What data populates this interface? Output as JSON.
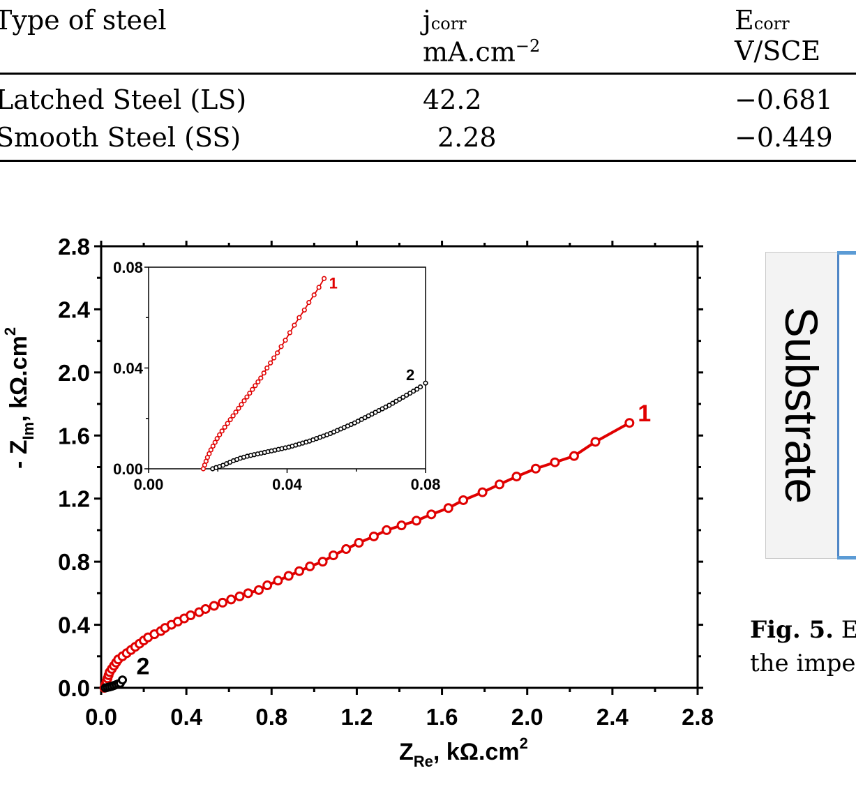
{
  "table": {
    "headers": {
      "type": "Type of steel",
      "jcorr_main": "j",
      "jcorr_sub": "corr",
      "jcorr_unit": "mA.cm",
      "jcorr_exp": "−2",
      "ecorr_main": "E",
      "ecorr_sub": "corr",
      "ecorr_unit": "V/SCE"
    },
    "rows": [
      {
        "type": "Latched Steel (LS)",
        "jcorr": "42.2",
        "ecorr": "−0.681"
      },
      {
        "type": "Smooth Steel (SS)",
        "jcorr": "2.28",
        "ecorr": "−0.449"
      }
    ]
  },
  "chart_data": [
    {
      "type": "scatter",
      "role": "main",
      "xlabel": "Z",
      "xlabel_sub": "Re",
      "xlabel_unit": ", kΩ.cm",
      "xlabel_sup": "2",
      "ylabel": "- Z",
      "ylabel_sub": "Im",
      "ylabel_unit": ", kΩ.cm",
      "ylabel_sup": "2",
      "xlim": [
        0,
        2.8
      ],
      "ylim": [
        0,
        2.8
      ],
      "xticks": [
        "0.0",
        "0.4",
        "0.8",
        "1.2",
        "1.6",
        "2.0",
        "2.4",
        "2.8"
      ],
      "yticks": [
        "0.0",
        "0.4",
        "0.8",
        "1.2",
        "1.6",
        "2.0",
        "2.4",
        "2.8"
      ],
      "series": [
        {
          "name": "1",
          "color": "#e00000",
          "points": [
            [
              0.015,
              0.0
            ],
            [
              0.02,
              0.02
            ],
            [
              0.025,
              0.04
            ],
            [
              0.03,
              0.06
            ],
            [
              0.035,
              0.08
            ],
            [
              0.04,
              0.1
            ],
            [
              0.05,
              0.12
            ],
            [
              0.06,
              0.14
            ],
            [
              0.07,
              0.16
            ],
            [
              0.08,
              0.18
            ],
            [
              0.1,
              0.2
            ],
            [
              0.12,
              0.22
            ],
            [
              0.14,
              0.24
            ],
            [
              0.16,
              0.26
            ],
            [
              0.18,
              0.28
            ],
            [
              0.2,
              0.3
            ],
            [
              0.22,
              0.32
            ],
            [
              0.25,
              0.34
            ],
            [
              0.28,
              0.36
            ],
            [
              0.3,
              0.38
            ],
            [
              0.33,
              0.4
            ],
            [
              0.36,
              0.42
            ],
            [
              0.39,
              0.44
            ],
            [
              0.42,
              0.46
            ],
            [
              0.46,
              0.48
            ],
            [
              0.49,
              0.5
            ],
            [
              0.53,
              0.52
            ],
            [
              0.57,
              0.54
            ],
            [
              0.61,
              0.56
            ],
            [
              0.65,
              0.58
            ],
            [
              0.69,
              0.6
            ],
            [
              0.74,
              0.62
            ],
            [
              0.78,
              0.65
            ],
            [
              0.83,
              0.68
            ],
            [
              0.88,
              0.71
            ],
            [
              0.93,
              0.74
            ],
            [
              0.98,
              0.77
            ],
            [
              1.04,
              0.8
            ],
            [
              1.09,
              0.84
            ],
            [
              1.15,
              0.88
            ],
            [
              1.21,
              0.92
            ],
            [
              1.28,
              0.96
            ],
            [
              1.34,
              1.0
            ],
            [
              1.41,
              1.03
            ],
            [
              1.48,
              1.06
            ],
            [
              1.55,
              1.1
            ],
            [
              1.63,
              1.14
            ],
            [
              1.7,
              1.19
            ],
            [
              1.79,
              1.24
            ],
            [
              1.87,
              1.29
            ],
            [
              1.95,
              1.34
            ],
            [
              2.04,
              1.39
            ],
            [
              2.13,
              1.43
            ],
            [
              2.22,
              1.47
            ],
            [
              2.32,
              1.56
            ],
            [
              2.48,
              1.68
            ]
          ],
          "end_label": "1"
        },
        {
          "name": "2",
          "color": "#000000",
          "points": [
            [
              0.02,
              0.0
            ],
            [
              0.03,
              0.003
            ],
            [
              0.04,
              0.006
            ],
            [
              0.05,
              0.01
            ],
            [
              0.06,
              0.015
            ],
            [
              0.07,
              0.02
            ],
            [
              0.08,
              0.025
            ],
            [
              0.09,
              0.03
            ],
            [
              0.1,
              0.05
            ]
          ],
          "end_label": "2"
        }
      ]
    },
    {
      "type": "scatter",
      "role": "inset",
      "xlim": [
        0,
        0.08
      ],
      "ylim": [
        0,
        0.08
      ],
      "xticks": [
        "0.00",
        "0.04",
        "0.08"
      ],
      "yticks": [
        "0.00",
        "0.04",
        "0.08"
      ],
      "series": [
        {
          "name": "1",
          "color": "#e00000",
          "points": [
            [
              0.0158,
              0.0
            ],
            [
              0.0162,
              0.0015
            ],
            [
              0.0166,
              0.003
            ],
            [
              0.017,
              0.0045
            ],
            [
              0.0175,
              0.006
            ],
            [
              0.018,
              0.0075
            ],
            [
              0.0186,
              0.009
            ],
            [
              0.0192,
              0.0105
            ],
            [
              0.0198,
              0.012
            ],
            [
              0.0205,
              0.0135
            ],
            [
              0.0212,
              0.015
            ],
            [
              0.022,
              0.0165
            ],
            [
              0.0228,
              0.018
            ],
            [
              0.0236,
              0.0195
            ],
            [
              0.0244,
              0.021
            ],
            [
              0.0252,
              0.0225
            ],
            [
              0.026,
              0.024
            ],
            [
              0.0268,
              0.0255
            ],
            [
              0.0276,
              0.027
            ],
            [
              0.0284,
              0.0285
            ],
            [
              0.0292,
              0.03
            ],
            [
              0.03,
              0.0315
            ],
            [
              0.0308,
              0.033
            ],
            [
              0.0316,
              0.0345
            ],
            [
              0.0324,
              0.036
            ],
            [
              0.0333,
              0.038
            ],
            [
              0.0342,
              0.04
            ],
            [
              0.0352,
              0.042
            ],
            [
              0.0362,
              0.044
            ],
            [
              0.0372,
              0.046
            ],
            [
              0.0383,
              0.0485
            ],
            [
              0.0395,
              0.051
            ],
            [
              0.0408,
              0.054
            ],
            [
              0.0421,
              0.057
            ],
            [
              0.0435,
              0.06
            ],
            [
              0.045,
              0.063
            ],
            [
              0.0463,
              0.066
            ],
            [
              0.0478,
              0.069
            ],
            [
              0.0492,
              0.072
            ],
            [
              0.0507,
              0.0755
            ]
          ],
          "end_label": "1"
        },
        {
          "name": "2",
          "color": "#000000",
          "points": [
            [
              0.0185,
              0.0
            ],
            [
              0.0195,
              0.0005
            ],
            [
              0.0205,
              0.0009
            ],
            [
              0.0215,
              0.0014
            ],
            [
              0.0225,
              0.002
            ],
            [
              0.0235,
              0.0026
            ],
            [
              0.0245,
              0.0032
            ],
            [
              0.0255,
              0.0037
            ],
            [
              0.0265,
              0.0042
            ],
            [
              0.0275,
              0.0046
            ],
            [
              0.0285,
              0.005
            ],
            [
              0.0295,
              0.0053
            ],
            [
              0.0305,
              0.0056
            ],
            [
              0.0315,
              0.0059
            ],
            [
              0.0325,
              0.0062
            ],
            [
              0.0335,
              0.0065
            ],
            [
              0.0345,
              0.0068
            ],
            [
              0.0355,
              0.0071
            ],
            [
              0.0365,
              0.0074
            ],
            [
              0.0375,
              0.0077
            ],
            [
              0.0385,
              0.008
            ],
            [
              0.0395,
              0.0083
            ],
            [
              0.0405,
              0.0086
            ],
            [
              0.0415,
              0.009
            ],
            [
              0.0425,
              0.0094
            ],
            [
              0.0435,
              0.0098
            ],
            [
              0.0445,
              0.0102
            ],
            [
              0.0455,
              0.0106
            ],
            [
              0.0465,
              0.011
            ],
            [
              0.0475,
              0.0115
            ],
            [
              0.0485,
              0.012
            ],
            [
              0.0495,
              0.0125
            ],
            [
              0.0505,
              0.013
            ],
            [
              0.0515,
              0.0135
            ],
            [
              0.0525,
              0.014
            ],
            [
              0.0535,
              0.0146
            ],
            [
              0.0545,
              0.0152
            ],
            [
              0.0555,
              0.0158
            ],
            [
              0.0565,
              0.0164
            ],
            [
              0.0575,
              0.017
            ],
            [
              0.0585,
              0.0176
            ],
            [
              0.0595,
              0.0182
            ],
            [
              0.0605,
              0.0189
            ],
            [
              0.0615,
              0.0196
            ],
            [
              0.0625,
              0.0203
            ],
            [
              0.0635,
              0.021
            ],
            [
              0.0645,
              0.0217
            ],
            [
              0.0655,
              0.0224
            ],
            [
              0.0665,
              0.0231
            ],
            [
              0.0675,
              0.0238
            ],
            [
              0.0685,
              0.0245
            ],
            [
              0.0695,
              0.0252
            ],
            [
              0.0705,
              0.026
            ],
            [
              0.0715,
              0.0268
            ],
            [
              0.0725,
              0.0276
            ],
            [
              0.0735,
              0.0284
            ],
            [
              0.0745,
              0.0292
            ],
            [
              0.0755,
              0.03
            ],
            [
              0.0765,
              0.0308
            ],
            [
              0.0775,
              0.0316
            ],
            [
              0.0785,
              0.0325
            ],
            [
              0.08,
              0.034
            ]
          ],
          "end_label": "2"
        }
      ]
    }
  ],
  "diagram": {
    "substrate_label": "Substrate"
  },
  "caption": {
    "label": "Fig. 5.",
    "line1_rest": " E",
    "line2": "the imped"
  }
}
